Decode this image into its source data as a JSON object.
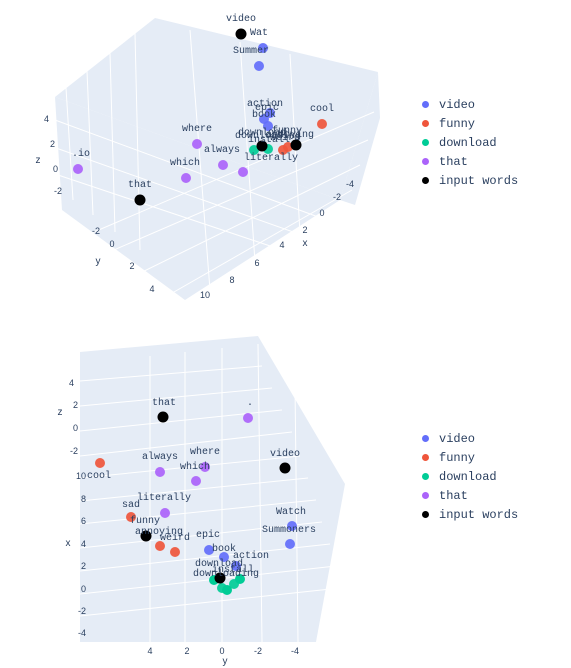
{
  "legend": {
    "entries": [
      {
        "name": "video",
        "color": "#636efa"
      },
      {
        "name": "funny",
        "color": "#ef553b"
      },
      {
        "name": "download",
        "color": "#00cc96"
      },
      {
        "name": "that",
        "color": "#ab63fa"
      },
      {
        "name": "input words",
        "color": "#000000"
      }
    ]
  },
  "chart_data": [
    {
      "type": "scatter3d",
      "axes": {
        "x": {
          "label": "x",
          "ticks": [
            "10",
            "8",
            "6",
            "4",
            "2",
            "0",
            "-2",
            "-4"
          ]
        },
        "y": {
          "label": "y",
          "ticks": [
            "4",
            "2",
            "0",
            "-2"
          ]
        },
        "z": {
          "label": "z",
          "ticks": [
            "4",
            "2",
            "0",
            "-2"
          ]
        }
      },
      "grid": true,
      "legend_position": "right",
      "points": [
        {
          "text": "video",
          "series": "input words"
        },
        {
          "text": "Wat",
          "series": "video"
        },
        {
          "text": "Summer",
          "series": "video"
        },
        {
          "text": "action",
          "series": "video"
        },
        {
          "text": "book",
          "series": "video"
        },
        {
          "text": "epic",
          "series": "video"
        },
        {
          "text": "cool",
          "series": "funny"
        },
        {
          "text": "funny",
          "series": "input words"
        },
        {
          "text": "annoying",
          "series": "funny"
        },
        {
          "text": "weird",
          "series": "funny"
        },
        {
          "text": "download",
          "series": "input words"
        },
        {
          "text": "downloading",
          "series": "download"
        },
        {
          "text": "install",
          "series": "download"
        },
        {
          "text": "where",
          "series": "that"
        },
        {
          "text": "which",
          "series": "that"
        },
        {
          "text": "always",
          "series": "that"
        },
        {
          "text": "literally",
          "series": "that"
        },
        {
          "text": ".io",
          "series": "that"
        },
        {
          "text": "that",
          "series": "input words"
        }
      ]
    },
    {
      "type": "scatter3d",
      "axes": {
        "x": {
          "label": "x",
          "ticks": [
            "10",
            "8",
            "6",
            "4",
            "2",
            "0",
            "-2",
            "-4"
          ]
        },
        "y": {
          "label": "y",
          "ticks": [
            "4",
            "2",
            "0",
            "-2",
            "-4"
          ]
        },
        "z": {
          "label": "z",
          "ticks": [
            "4",
            "2",
            "0",
            "-2"
          ]
        }
      },
      "grid": true,
      "legend_position": "right",
      "points": [
        {
          "text": "that",
          "series": "input words"
        },
        {
          "text": ".",
          "series": "that"
        },
        {
          "text": "always",
          "series": "that"
        },
        {
          "text": "where",
          "series": "that"
        },
        {
          "text": "which",
          "series": "that"
        },
        {
          "text": "literally",
          "series": "that"
        },
        {
          "text": "video",
          "series": "input words"
        },
        {
          "text": "Watch",
          "series": "video"
        },
        {
          "text": "Summoners",
          "series": "video"
        },
        {
          "text": "epic",
          "series": "video"
        },
        {
          "text": "book",
          "series": "video"
        },
        {
          "text": "action",
          "series": "video"
        },
        {
          "text": "cool",
          "series": "funny"
        },
        {
          "text": "sad",
          "series": "funny"
        },
        {
          "text": "funny",
          "series": "input words"
        },
        {
          "text": "annoying",
          "series": "funny"
        },
        {
          "text": "weird",
          "series": "funny"
        },
        {
          "text": "download",
          "series": "input words"
        },
        {
          "text": "downloading",
          "series": "download"
        },
        {
          "text": "install",
          "series": "download"
        }
      ]
    }
  ]
}
